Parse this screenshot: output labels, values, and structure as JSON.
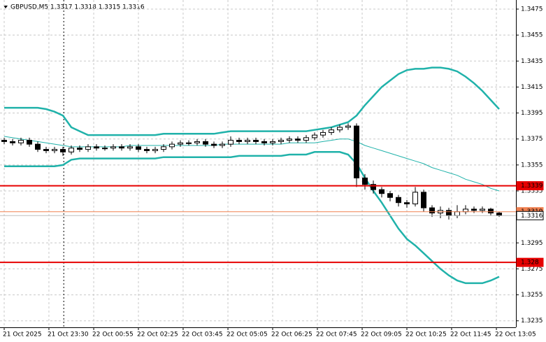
{
  "chart_data": {
    "type": "candlestick",
    "title": "GBPUSD,M5 1.3317 1.3318 1.3315 1.3316",
    "open": [
      1.3374,
      1.3373,
      1.3372,
      1.3374,
      1.3371,
      1.3367,
      1.3366,
      1.3367,
      1.3365,
      1.3368,
      1.3367,
      1.3369,
      1.3368,
      1.3368,
      1.3369,
      1.3368,
      1.3369,
      1.3367,
      1.3366,
      1.3367,
      1.3369,
      1.3371,
      1.3372,
      1.3372,
      1.3373,
      1.3371,
      1.337,
      1.3371,
      1.3374,
      1.3373,
      1.3374,
      1.3373,
      1.3372,
      1.3373,
      1.3374,
      1.3375,
      1.3374,
      1.3376,
      1.3378,
      1.338,
      1.3382,
      1.3384,
      1.3385,
      1.3345,
      1.334,
      1.3336,
      1.3333,
      1.333,
      1.3326,
      1.3325,
      1.3334,
      1.3322,
      1.3318,
      1.332,
      1.3316,
      1.3319,
      1.3321,
      1.332,
      1.3321,
      1.3318
    ],
    "high": [
      1.3376,
      1.3375,
      1.3376,
      1.3376,
      1.3373,
      1.3369,
      1.3369,
      1.3369,
      1.337,
      1.337,
      1.3371,
      1.3371,
      1.337,
      1.3371,
      1.3371,
      1.3371,
      1.3371,
      1.3369,
      1.3369,
      1.3371,
      1.3373,
      1.3374,
      1.3374,
      1.3375,
      1.3375,
      1.3373,
      1.3373,
      1.3377,
      1.3376,
      1.3376,
      1.3376,
      1.3375,
      1.3375,
      1.3376,
      1.3377,
      1.3377,
      1.3378,
      1.338,
      1.3382,
      1.3384,
      1.3386,
      1.3387,
      1.3387,
      1.3348,
      1.3343,
      1.3338,
      1.3335,
      1.3332,
      1.3328,
      1.3338,
      1.3336,
      1.3324,
      1.3323,
      1.3322,
      1.3324,
      1.3324,
      1.3323,
      1.3323,
      1.3322,
      1.3319
    ],
    "low": [
      1.3371,
      1.337,
      1.337,
      1.3369,
      1.3365,
      1.3364,
      1.3364,
      1.3362,
      1.3363,
      1.3365,
      1.3365,
      1.3366,
      1.3366,
      1.3366,
      1.3366,
      1.3366,
      1.3365,
      1.3364,
      1.3364,
      1.3365,
      1.3367,
      1.3369,
      1.337,
      1.337,
      1.3369,
      1.3368,
      1.3368,
      1.3369,
      1.3371,
      1.3371,
      1.3371,
      1.337,
      1.337,
      1.3371,
      1.3372,
      1.3372,
      1.3372,
      1.3374,
      1.3376,
      1.3378,
      1.338,
      1.3382,
      1.3338,
      1.3336,
      1.3333,
      1.333,
      1.3327,
      1.3323,
      1.3322,
      1.3323,
      1.3319,
      1.3315,
      1.3314,
      1.3313,
      1.3314,
      1.3317,
      1.3318,
      1.3318,
      1.3316,
      1.3315
    ],
    "close": [
      1.3373,
      1.3372,
      1.3374,
      1.3371,
      1.3367,
      1.3366,
      1.3367,
      1.3365,
      1.3368,
      1.3367,
      1.3369,
      1.3368,
      1.3368,
      1.3369,
      1.3368,
      1.3369,
      1.3367,
      1.3366,
      1.3367,
      1.3369,
      1.3371,
      1.3372,
      1.3372,
      1.3373,
      1.3371,
      1.337,
      1.3371,
      1.3374,
      1.3373,
      1.3374,
      1.3373,
      1.3372,
      1.3373,
      1.3374,
      1.3375,
      1.3374,
      1.3376,
      1.3378,
      1.338,
      1.3382,
      1.3384,
      1.3385,
      1.3345,
      1.334,
      1.3336,
      1.3333,
      1.333,
      1.3326,
      1.3325,
      1.3334,
      1.3322,
      1.3318,
      1.332,
      1.3316,
      1.3319,
      1.3321,
      1.332,
      1.3321,
      1.3318,
      1.3316
    ],
    "bands": [
      {
        "color": "#20b2aa",
        "width": 2.5,
        "values": [
          1.3399,
          1.3399,
          1.3399,
          1.3399,
          1.3399,
          1.3398,
          1.3396,
          1.3393,
          1.3384,
          1.3381,
          1.3378,
          1.3378,
          1.3378,
          1.3378,
          1.3378,
          1.3378,
          1.3378,
          1.3378,
          1.3378,
          1.3379,
          1.3379,
          1.3379,
          1.3379,
          1.3379,
          1.3379,
          1.3379,
          1.338,
          1.3381,
          1.3381,
          1.3381,
          1.3381,
          1.3381,
          1.3381,
          1.3381,
          1.3381,
          1.3381,
          1.3381,
          1.3382,
          1.3383,
          1.3384,
          1.3386,
          1.3388,
          1.3393,
          1.3401,
          1.3408,
          1.3415,
          1.342,
          1.3425,
          1.3428,
          1.3429,
          1.3429,
          1.343,
          1.343,
          1.3429,
          1.3427,
          1.3423,
          1.3418,
          1.3412,
          1.3405,
          1.3398
        ]
      },
      {
        "color": "#20b2aa",
        "width": 1,
        "values": [
          1.3377,
          1.3376,
          1.3375,
          1.3374,
          1.3373,
          1.3372,
          1.3371,
          1.337,
          1.3369,
          1.3369,
          1.3369,
          1.3369,
          1.3369,
          1.3369,
          1.3369,
          1.337,
          1.337,
          1.337,
          1.337,
          1.337,
          1.337,
          1.337,
          1.337,
          1.337,
          1.337,
          1.337,
          1.3371,
          1.3371,
          1.3371,
          1.3371,
          1.3371,
          1.3371,
          1.3371,
          1.3371,
          1.3372,
          1.3372,
          1.3372,
          1.3372,
          1.3373,
          1.3374,
          1.3375,
          1.3375,
          1.3373,
          1.337,
          1.3368,
          1.3366,
          1.3364,
          1.3362,
          1.336,
          1.3358,
          1.3356,
          1.3353,
          1.3351,
          1.3349,
          1.3347,
          1.3344,
          1.3342,
          1.334,
          1.3337,
          1.3335
        ]
      },
      {
        "color": "#20b2aa",
        "width": 2.5,
        "values": [
          1.3354,
          1.3354,
          1.3354,
          1.3354,
          1.3354,
          1.3354,
          1.3354,
          1.3355,
          1.3359,
          1.336,
          1.336,
          1.336,
          1.336,
          1.336,
          1.336,
          1.336,
          1.336,
          1.336,
          1.336,
          1.3361,
          1.3361,
          1.3361,
          1.3361,
          1.3361,
          1.3361,
          1.3361,
          1.3361,
          1.3361,
          1.3362,
          1.3362,
          1.3362,
          1.3362,
          1.3362,
          1.3362,
          1.3363,
          1.3363,
          1.3363,
          1.3365,
          1.3365,
          1.3365,
          1.3365,
          1.3363,
          1.3356,
          1.3345,
          1.3335,
          1.3326,
          1.3316,
          1.3306,
          1.3298,
          1.3293,
          1.3287,
          1.3281,
          1.3275,
          1.327,
          1.3266,
          1.3264,
          1.3264,
          1.3264,
          1.3266,
          1.3269
        ]
      }
    ],
    "levels": [
      {
        "value": 1.3339,
        "color": "#e60000"
      },
      {
        "value": 1.328,
        "color": "#e60000"
      }
    ],
    "price_lines": [
      {
        "value": 1.3319,
        "color": "#f08050"
      },
      {
        "value": 1.3316,
        "color": "#c0c0c0"
      }
    ],
    "ylim": [
      1.3482,
      1.323
    ],
    "yticks": [
      1.3475,
      1.3455,
      1.3435,
      1.3415,
      1.3395,
      1.3375,
      1.3355,
      1.3335,
      1.3295,
      1.3275,
      1.3255,
      1.3235
    ],
    "xlim": [
      -0.5,
      61
    ],
    "xticks": [
      {
        "value": 0,
        "label": "21 Oct 2025"
      },
      {
        "value": 5.33,
        "label": "21 Oct 23:30"
      },
      {
        "value": 10.67,
        "label": "22 Oct 00:55"
      },
      {
        "value": 16,
        "label": "22 Oct 02:25"
      },
      {
        "value": 21.33,
        "label": "22 Oct 03:45"
      },
      {
        "value": 26.67,
        "label": "22 Oct 05:05"
      },
      {
        "value": 32,
        "label": "22 Oct 06:25"
      },
      {
        "value": 37.33,
        "label": "22 Oct 07:45"
      },
      {
        "value": 42.67,
        "label": "22 Oct 09:05"
      },
      {
        "value": 48,
        "label": "22 Oct 10:25"
      },
      {
        "value": 53.33,
        "label": "22 Oct 11:45"
      },
      {
        "value": 58.67,
        "label": "22 Oct 13:05"
      }
    ],
    "day_separator": 7.1,
    "grid": true
  }
}
